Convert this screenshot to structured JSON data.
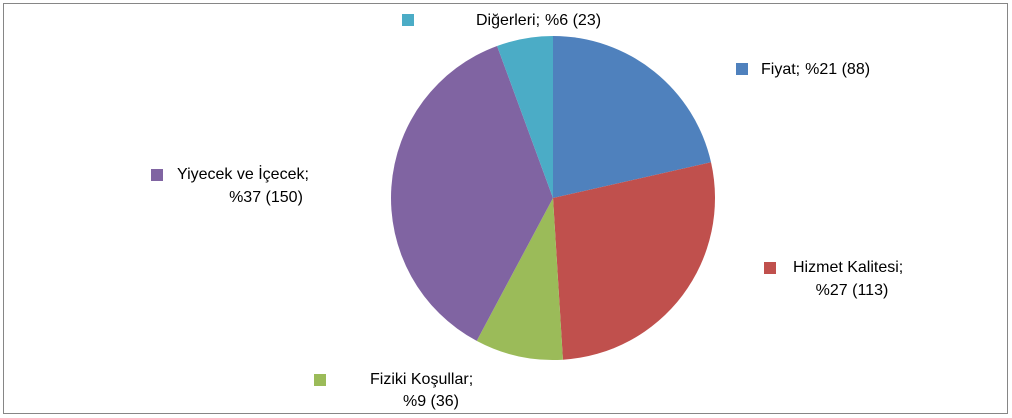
{
  "chart_data": {
    "type": "pie",
    "categories": [
      "Fiyat;",
      "Hizmet Kalitesi;",
      "Fiziki Koşullar;",
      "Yiyecek ve İçecek;",
      "Diğerleri;"
    ],
    "values": [
      88,
      113,
      36,
      150,
      23
    ],
    "value_labels": [
      "%21 (88)",
      "%27 (113)",
      "%9 (36)",
      "%37 (150)",
      "%6 (23)"
    ],
    "colors": [
      "#4f81bd",
      "#c0504d",
      "#9bbb59",
      "#8064a2",
      "#4bacc6"
    ]
  }
}
